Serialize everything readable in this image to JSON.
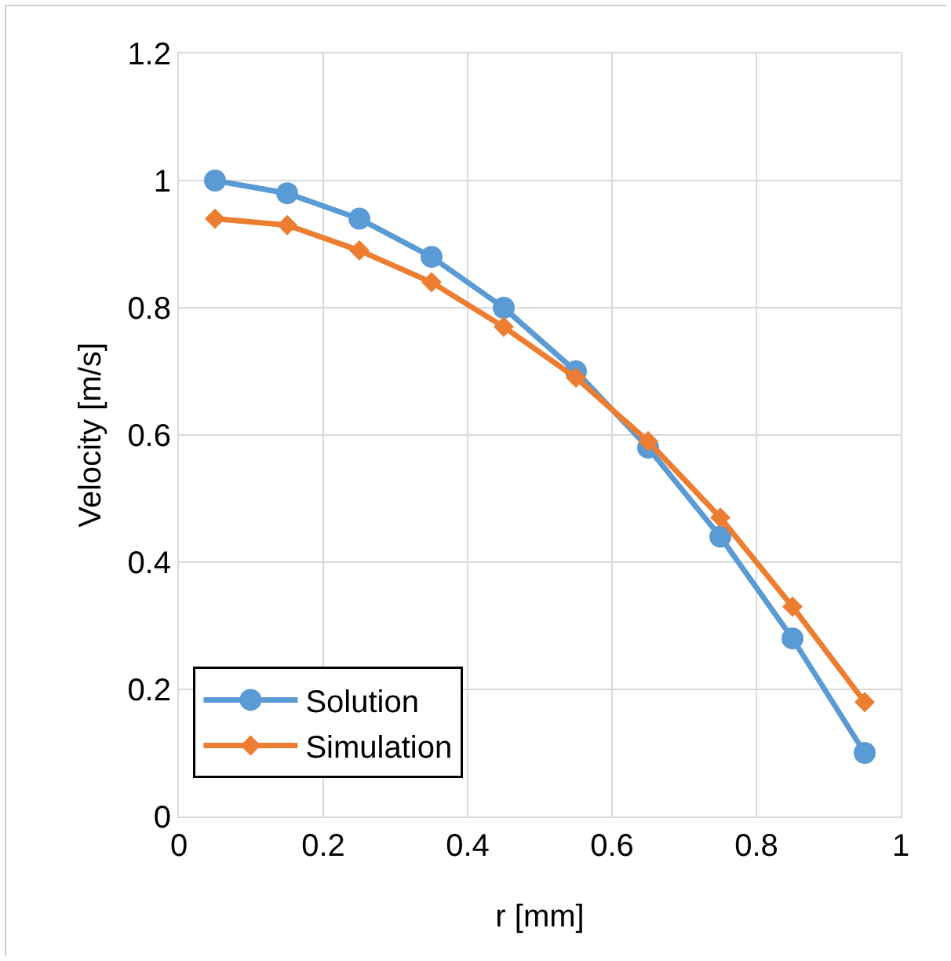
{
  "chart_data": {
    "type": "line",
    "xlabel": "r [mm]",
    "ylabel": "Velocity [m/s]",
    "x": [
      0.05,
      0.15,
      0.25,
      0.35,
      0.45,
      0.55,
      0.65,
      0.75,
      0.85,
      0.95
    ],
    "series": [
      {
        "name": "Solution",
        "color": "#5b9bd5",
        "marker": "circle",
        "values": [
          1.0,
          0.98,
          0.94,
          0.88,
          0.8,
          0.7,
          0.58,
          0.44,
          0.28,
          0.1
        ]
      },
      {
        "name": "Simulation",
        "color": "#ed7d31",
        "marker": "diamond",
        "values": [
          0.94,
          0.93,
          0.89,
          0.84,
          0.77,
          0.69,
          0.59,
          0.47,
          0.33,
          0.18
        ]
      }
    ],
    "xlim": [
      0,
      1
    ],
    "xticks": [
      0,
      0.2,
      0.4,
      0.6,
      0.8,
      1
    ],
    "ylim": [
      0,
      1.2
    ],
    "yticks": [
      0,
      0.2,
      0.4,
      0.6,
      0.8,
      1,
      1.2
    ],
    "grid": true,
    "legend": "bottom left",
    "line_style": "solid"
  }
}
